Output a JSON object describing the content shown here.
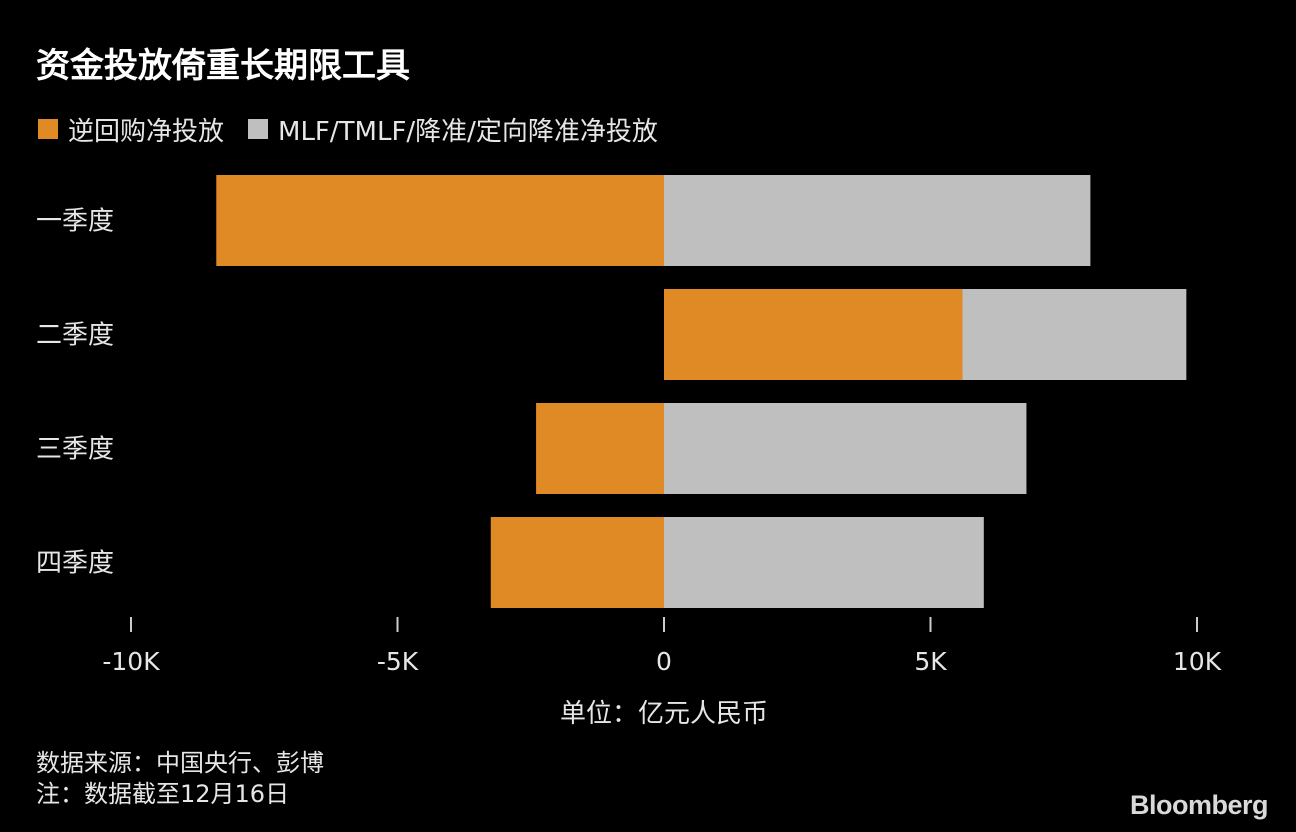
{
  "title": "资金投放倚重长期限工具",
  "legend": [
    {
      "label": "逆回购净投放",
      "color": "#E08A25"
    },
    {
      "label": "MLF/TMLF/降准/定向降准净投放",
      "color": "#BFBFBF"
    }
  ],
  "chart_data": {
    "type": "bar",
    "orientation": "horizontal",
    "stacking": "diverging",
    "categories": [
      "一季度",
      "二季度",
      "三季度",
      "四季度"
    ],
    "series": [
      {
        "name": "逆回购净投放",
        "color": "#E08A25",
        "values": [
          -8400,
          5600,
          -2400,
          -3250
        ]
      },
      {
        "name": "MLF/TMLF/降准/定向降准净投放",
        "color": "#BFBFBF",
        "values": [
          8000,
          4200,
          6800,
          6000
        ]
      }
    ],
    "xlim": [
      -10000,
      10000
    ],
    "xticks": [
      -10000,
      -5000,
      0,
      5000,
      10000
    ],
    "xtick_labels": [
      "-10K",
      "-5K",
      "0",
      "5K",
      "10K"
    ],
    "xlabel": "单位：亿元人民币",
    "grid": false,
    "legend_position": "top-left"
  },
  "source": {
    "line1": "数据来源：中国央行、彭博",
    "line2": "注：数据截至12月16日"
  },
  "brand": "Bloomberg"
}
